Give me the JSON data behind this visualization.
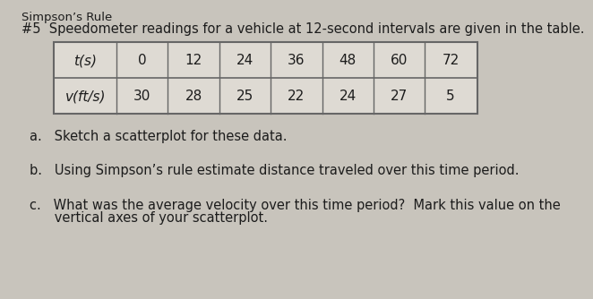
{
  "title_line1": "Simpson’s Rule",
  "title_line2": "#5  Speedometer readings for a vehicle at 12-second intervals are given in the table.",
  "table_headers": [
    "t(s)",
    "0",
    "12",
    "24",
    "36",
    "48",
    "60",
    "72"
  ],
  "table_row2_label": "v(ft/s)",
  "table_row2_values": [
    "30",
    "28",
    "25",
    "22",
    "24",
    "27",
    "5"
  ],
  "question_a": "a.   Sketch a scatterplot for these data.",
  "question_b": "b.   Using Simpson’s rule estimate distance traveled over this time period.",
  "question_c_line1": "c.   What was the average velocity over this time period?  Mark this value on the",
  "question_c_line2": "      vertical axes of your scatterplot.",
  "bg_color": "#c8c4bc",
  "table_bg": "#dedad3",
  "text_color": "#1c1c1c",
  "table_line_color": "#666666",
  "font_size_title1": 9.5,
  "font_size_title2": 10.5,
  "font_size_table": 11,
  "font_size_questions": 10.5
}
